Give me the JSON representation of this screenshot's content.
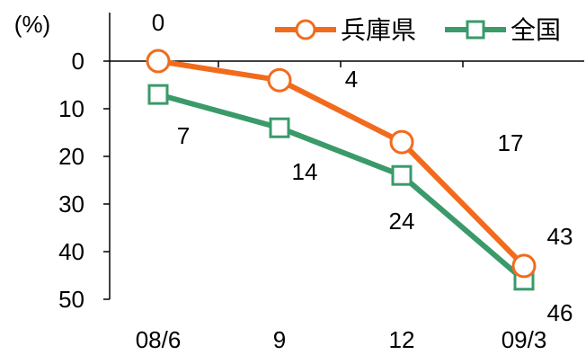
{
  "chart_data": {
    "type": "line",
    "unit_label": "(%)",
    "categories": [
      "08/6",
      "9",
      "12",
      "09/3"
    ],
    "ylim": [
      0,
      50
    ],
    "y_inverted": true,
    "y_ticks": [
      "0",
      "10",
      "20",
      "30",
      "40",
      "50"
    ],
    "y_tick_values": [
      0,
      10,
      20,
      30,
      40,
      50
    ],
    "grid": false,
    "legend_position": "top-right",
    "series": [
      {
        "name": "兵庫県",
        "color": "#f26b1d",
        "marker": "circle",
        "values": [
          0,
          4,
          17,
          43
        ],
        "labels": [
          "0",
          "4",
          "17",
          "43"
        ]
      },
      {
        "name": "全国",
        "color": "#3a9a6a",
        "marker": "square",
        "values": [
          7,
          14,
          24,
          46
        ],
        "labels": [
          "7",
          "14",
          "24",
          "46"
        ]
      }
    ]
  }
}
